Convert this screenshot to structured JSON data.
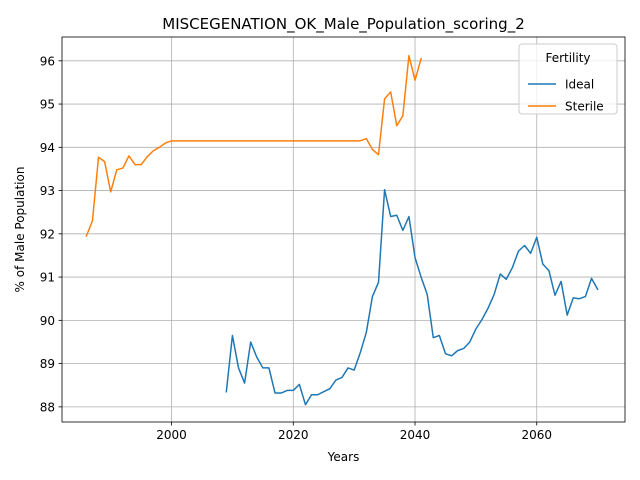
{
  "chart_data": {
    "type": "line",
    "title": "MISCEGENATION_OK_Male_Population_scoring_2",
    "xlabel": "Years",
    "ylabel": "% of Male Population",
    "xlim": [
      1982,
      2074.5
    ],
    "ylim": [
      87.65,
      96.55
    ],
    "xticks": [
      2000,
      2020,
      2040,
      2060
    ],
    "yticks": [
      88,
      89,
      90,
      91,
      92,
      93,
      94,
      95,
      96
    ],
    "grid": true,
    "legend": {
      "title": "Fertility",
      "position": "top-right"
    },
    "colors": {
      "Ideal": "#1f77b4",
      "Sterile": "#ff7f0e"
    },
    "series": [
      {
        "name": "Ideal",
        "x": [
          2009,
          2010,
          2011,
          2012,
          2013,
          2014,
          2015,
          2016,
          2017,
          2018,
          2019,
          2020,
          2021,
          2022,
          2023,
          2024,
          2025,
          2026,
          2027,
          2028,
          2029,
          2030,
          2031,
          2032,
          2033,
          2034,
          2035,
          2036,
          2037,
          2038,
          2039,
          2040,
          2041,
          2042,
          2043,
          2044,
          2045,
          2046,
          2047,
          2048,
          2049,
          2050,
          2051,
          2052,
          2053,
          2054,
          2055,
          2056,
          2057,
          2058,
          2059,
          2060,
          2061,
          2062,
          2063,
          2064,
          2065,
          2066,
          2067,
          2068,
          2069,
          2070
        ],
        "values": [
          88.35,
          89.65,
          88.9,
          88.55,
          89.5,
          89.15,
          88.9,
          88.9,
          88.32,
          88.32,
          88.38,
          88.38,
          88.52,
          88.05,
          88.28,
          88.28,
          88.35,
          88.42,
          88.62,
          88.68,
          88.9,
          88.85,
          89.25,
          89.72,
          90.55,
          90.88,
          93.02,
          92.4,
          92.43,
          92.08,
          92.4,
          91.45,
          91.0,
          90.6,
          89.6,
          89.65,
          89.23,
          89.18,
          89.3,
          89.35,
          89.5,
          89.8,
          90.02,
          90.28,
          90.6,
          91.07,
          90.95,
          91.22,
          91.6,
          91.73,
          91.55,
          91.92,
          91.3,
          91.15,
          90.58,
          90.9,
          90.12,
          90.52,
          90.5,
          90.55,
          90.97,
          90.72
        ]
      },
      {
        "name": "Sterile",
        "x": [
          1986,
          1987,
          1988,
          1989,
          1990,
          1991,
          1992,
          1993,
          1994,
          1995,
          1996,
          1997,
          1998,
          1999,
          2000,
          2005,
          2010,
          2015,
          2020,
          2025,
          2030,
          2031,
          2032,
          2033,
          2034,
          2035,
          2036,
          2037,
          2038,
          2039,
          2040,
          2041
        ],
        "values": [
          91.95,
          92.3,
          93.77,
          93.67,
          92.97,
          93.48,
          93.52,
          93.8,
          93.6,
          93.6,
          93.78,
          93.92,
          94.0,
          94.1,
          94.15,
          94.15,
          94.15,
          94.15,
          94.15,
          94.15,
          94.15,
          94.15,
          94.2,
          93.95,
          93.83,
          95.12,
          95.28,
          94.5,
          94.73,
          96.12,
          95.55,
          96.05
        ]
      }
    ]
  }
}
